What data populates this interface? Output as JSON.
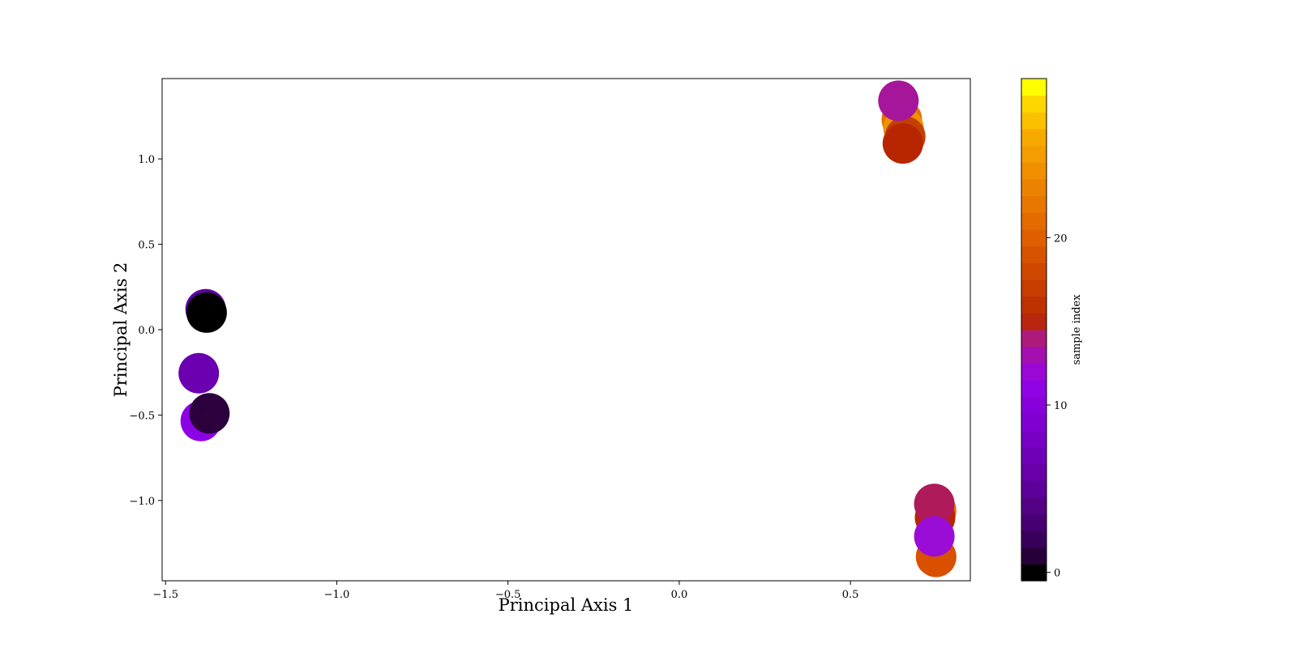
{
  "chart_data": {
    "type": "scatter",
    "xlabel": "Principal Axis 1",
    "ylabel": "Principal Axis 2",
    "xlim": [
      -1.51,
      0.85
    ],
    "ylim": [
      -1.47,
      1.47
    ],
    "xticks": [
      -1.5,
      -1.0,
      -0.5,
      0.0,
      0.5
    ],
    "xtick_labels": [
      "−1.5",
      "−1.0",
      "−0.5",
      "0.0",
      "0.5"
    ],
    "yticks": [
      -1.0,
      -0.5,
      0.0,
      0.5,
      1.0
    ],
    "ytick_labels": [
      "−1.0",
      "−0.5",
      "0.0",
      "0.5",
      "1.0"
    ],
    "grid": false,
    "colormap": "gnuplot",
    "colorbar": {
      "label": "sample index",
      "range": [
        0,
        29
      ],
      "ticks": [
        0,
        10,
        20
      ],
      "tick_labels": [
        "0",
        "10",
        "20"
      ],
      "bands": 30,
      "colors": [
        "#000000",
        "#27003a",
        "#38005b",
        "#470071",
        "#530085",
        "#5d0098",
        "#6700a9",
        "#7000b7",
        "#7800c6",
        "#8000d1",
        "#8700dc",
        "#8f03e6",
        "#9a08d8",
        "#a40fb0",
        "#ae1a79",
        "#b8260f",
        "#c03100",
        "#c83c00",
        "#d04800",
        "#d85300",
        "#df5f00",
        "#e46b00",
        "#e87700",
        "#ec8300",
        "#f09000",
        "#f49c00",
        "#f8a900",
        "#fbc000",
        "#fdd600",
        "#ffff00"
      ]
    },
    "points": [
      {
        "x": -1.397,
        "y": -0.535,
        "color": "#8d02e4"
      },
      {
        "x": -1.403,
        "y": -0.255,
        "color": "#6a00b0"
      },
      {
        "x": -1.383,
        "y": 0.12,
        "color": "#6000a0"
      },
      {
        "x": -1.38,
        "y": 0.1,
        "color": "#000000"
      },
      {
        "x": -1.372,
        "y": -0.49,
        "color": "#2b003d"
      },
      {
        "x": 0.65,
        "y": 1.23,
        "color": "#e67300"
      },
      {
        "x": 0.655,
        "y": 1.18,
        "color": "#f09200"
      },
      {
        "x": 0.66,
        "y": 1.13,
        "color": "#c44000"
      },
      {
        "x": 0.653,
        "y": 1.09,
        "color": "#b82600"
      },
      {
        "x": 0.64,
        "y": 1.34,
        "color": "#a6169a"
      },
      {
        "x": 0.75,
        "y": -1.06,
        "color": "#e67300"
      },
      {
        "x": 0.747,
        "y": -1.1,
        "color": "#b82600"
      },
      {
        "x": 0.745,
        "y": -1.02,
        "color": "#ae1a5a"
      },
      {
        "x": 0.75,
        "y": -1.33,
        "color": "#d85000"
      },
      {
        "x": 0.745,
        "y": -1.21,
        "color": "#9a0dd6"
      }
    ]
  }
}
